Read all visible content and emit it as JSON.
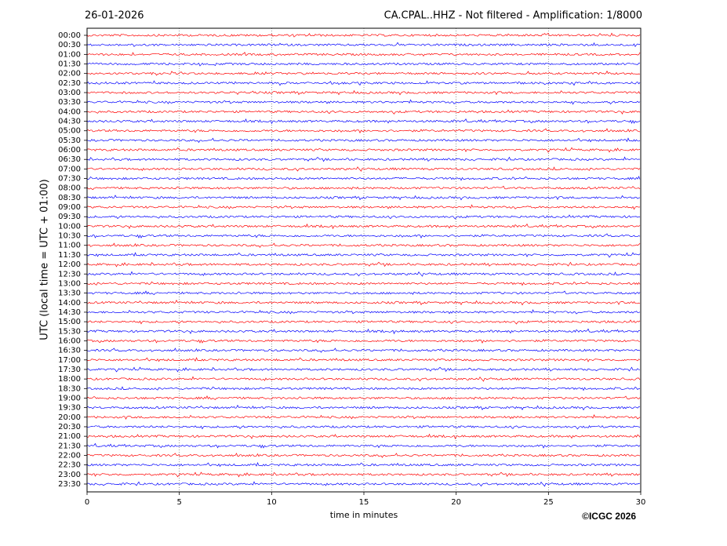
{
  "chart_data": {
    "type": "helicorder",
    "date": "26-01-2026",
    "title": "CA.CPAL..HHZ - Not filtered - Amplification: 1/8000",
    "ylabel": "UTC (local time = UTC + 01:00)",
    "xlabel": "time in minutes",
    "xlim": [
      0,
      30
    ],
    "xticks": [
      0,
      5,
      10,
      15,
      20,
      25,
      30
    ],
    "grid": true,
    "categories": [
      "00:00",
      "00:30",
      "01:00",
      "01:30",
      "02:00",
      "02:30",
      "03:00",
      "03:30",
      "04:00",
      "04:30",
      "05:00",
      "05:30",
      "06:00",
      "06:30",
      "07:00",
      "07:30",
      "08:00",
      "08:30",
      "09:00",
      "09:30",
      "10:00",
      "10:30",
      "11:00",
      "11:30",
      "12:00",
      "12:30",
      "13:00",
      "13:30",
      "14:00",
      "14:30",
      "15:00",
      "15:30",
      "16:00",
      "16:30",
      "17:00",
      "17:30",
      "18:00",
      "18:30",
      "19:00",
      "19:30",
      "20:00",
      "20:30",
      "21:00",
      "21:30",
      "22:00",
      "22:30",
      "23:00",
      "23:30"
    ],
    "trace_colors": [
      "#ff0000",
      "#0000ff"
    ]
  },
  "credit": "©ICGC 2026"
}
